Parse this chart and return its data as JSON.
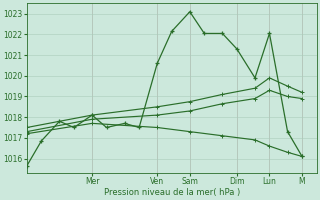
{
  "background_color": "#cce8dc",
  "grid_color": "#aaccbb",
  "line_color": "#2a6e2a",
  "xlabel": "Pression niveau de la mer( hPa )",
  "ylim": [
    1015.3,
    1023.5
  ],
  "yticks": [
    1016,
    1017,
    1018,
    1019,
    1020,
    1021,
    1022,
    1023
  ],
  "x_day_labels": [
    "Mer",
    "Ven",
    "Sam",
    "Dim",
    "Lun",
    "M"
  ],
  "x_day_positions": [
    18,
    36,
    45,
    58,
    67,
    76
  ],
  "xlim": [
    0,
    80
  ],
  "series1_x": [
    0,
    4,
    9,
    13,
    18,
    22,
    27,
    31,
    36,
    40,
    45,
    49,
    54,
    58,
    63,
    67,
    72,
    76
  ],
  "series1_y": [
    1015.65,
    1016.85,
    1017.8,
    1017.5,
    1018.1,
    1017.5,
    1017.7,
    1017.5,
    1020.6,
    1022.15,
    1023.1,
    1022.05,
    1022.05,
    1021.3,
    1019.9,
    1022.05,
    1017.3,
    1016.1
  ],
  "series2_x": [
    0,
    18,
    36,
    45,
    54,
    63,
    67,
    72,
    76
  ],
  "series2_y": [
    1017.5,
    1018.1,
    1018.5,
    1018.75,
    1019.1,
    1019.4,
    1019.9,
    1019.5,
    1019.2
  ],
  "series3_x": [
    0,
    18,
    36,
    45,
    54,
    63,
    67,
    72,
    76
  ],
  "series3_y": [
    1017.3,
    1017.9,
    1018.1,
    1018.3,
    1018.65,
    1018.9,
    1019.3,
    1019.0,
    1018.9
  ],
  "series4_x": [
    0,
    18,
    36,
    45,
    54,
    63,
    67,
    72,
    76
  ],
  "series4_y": [
    1017.2,
    1017.7,
    1017.5,
    1017.3,
    1017.1,
    1016.9,
    1016.6,
    1016.3,
    1016.1
  ]
}
